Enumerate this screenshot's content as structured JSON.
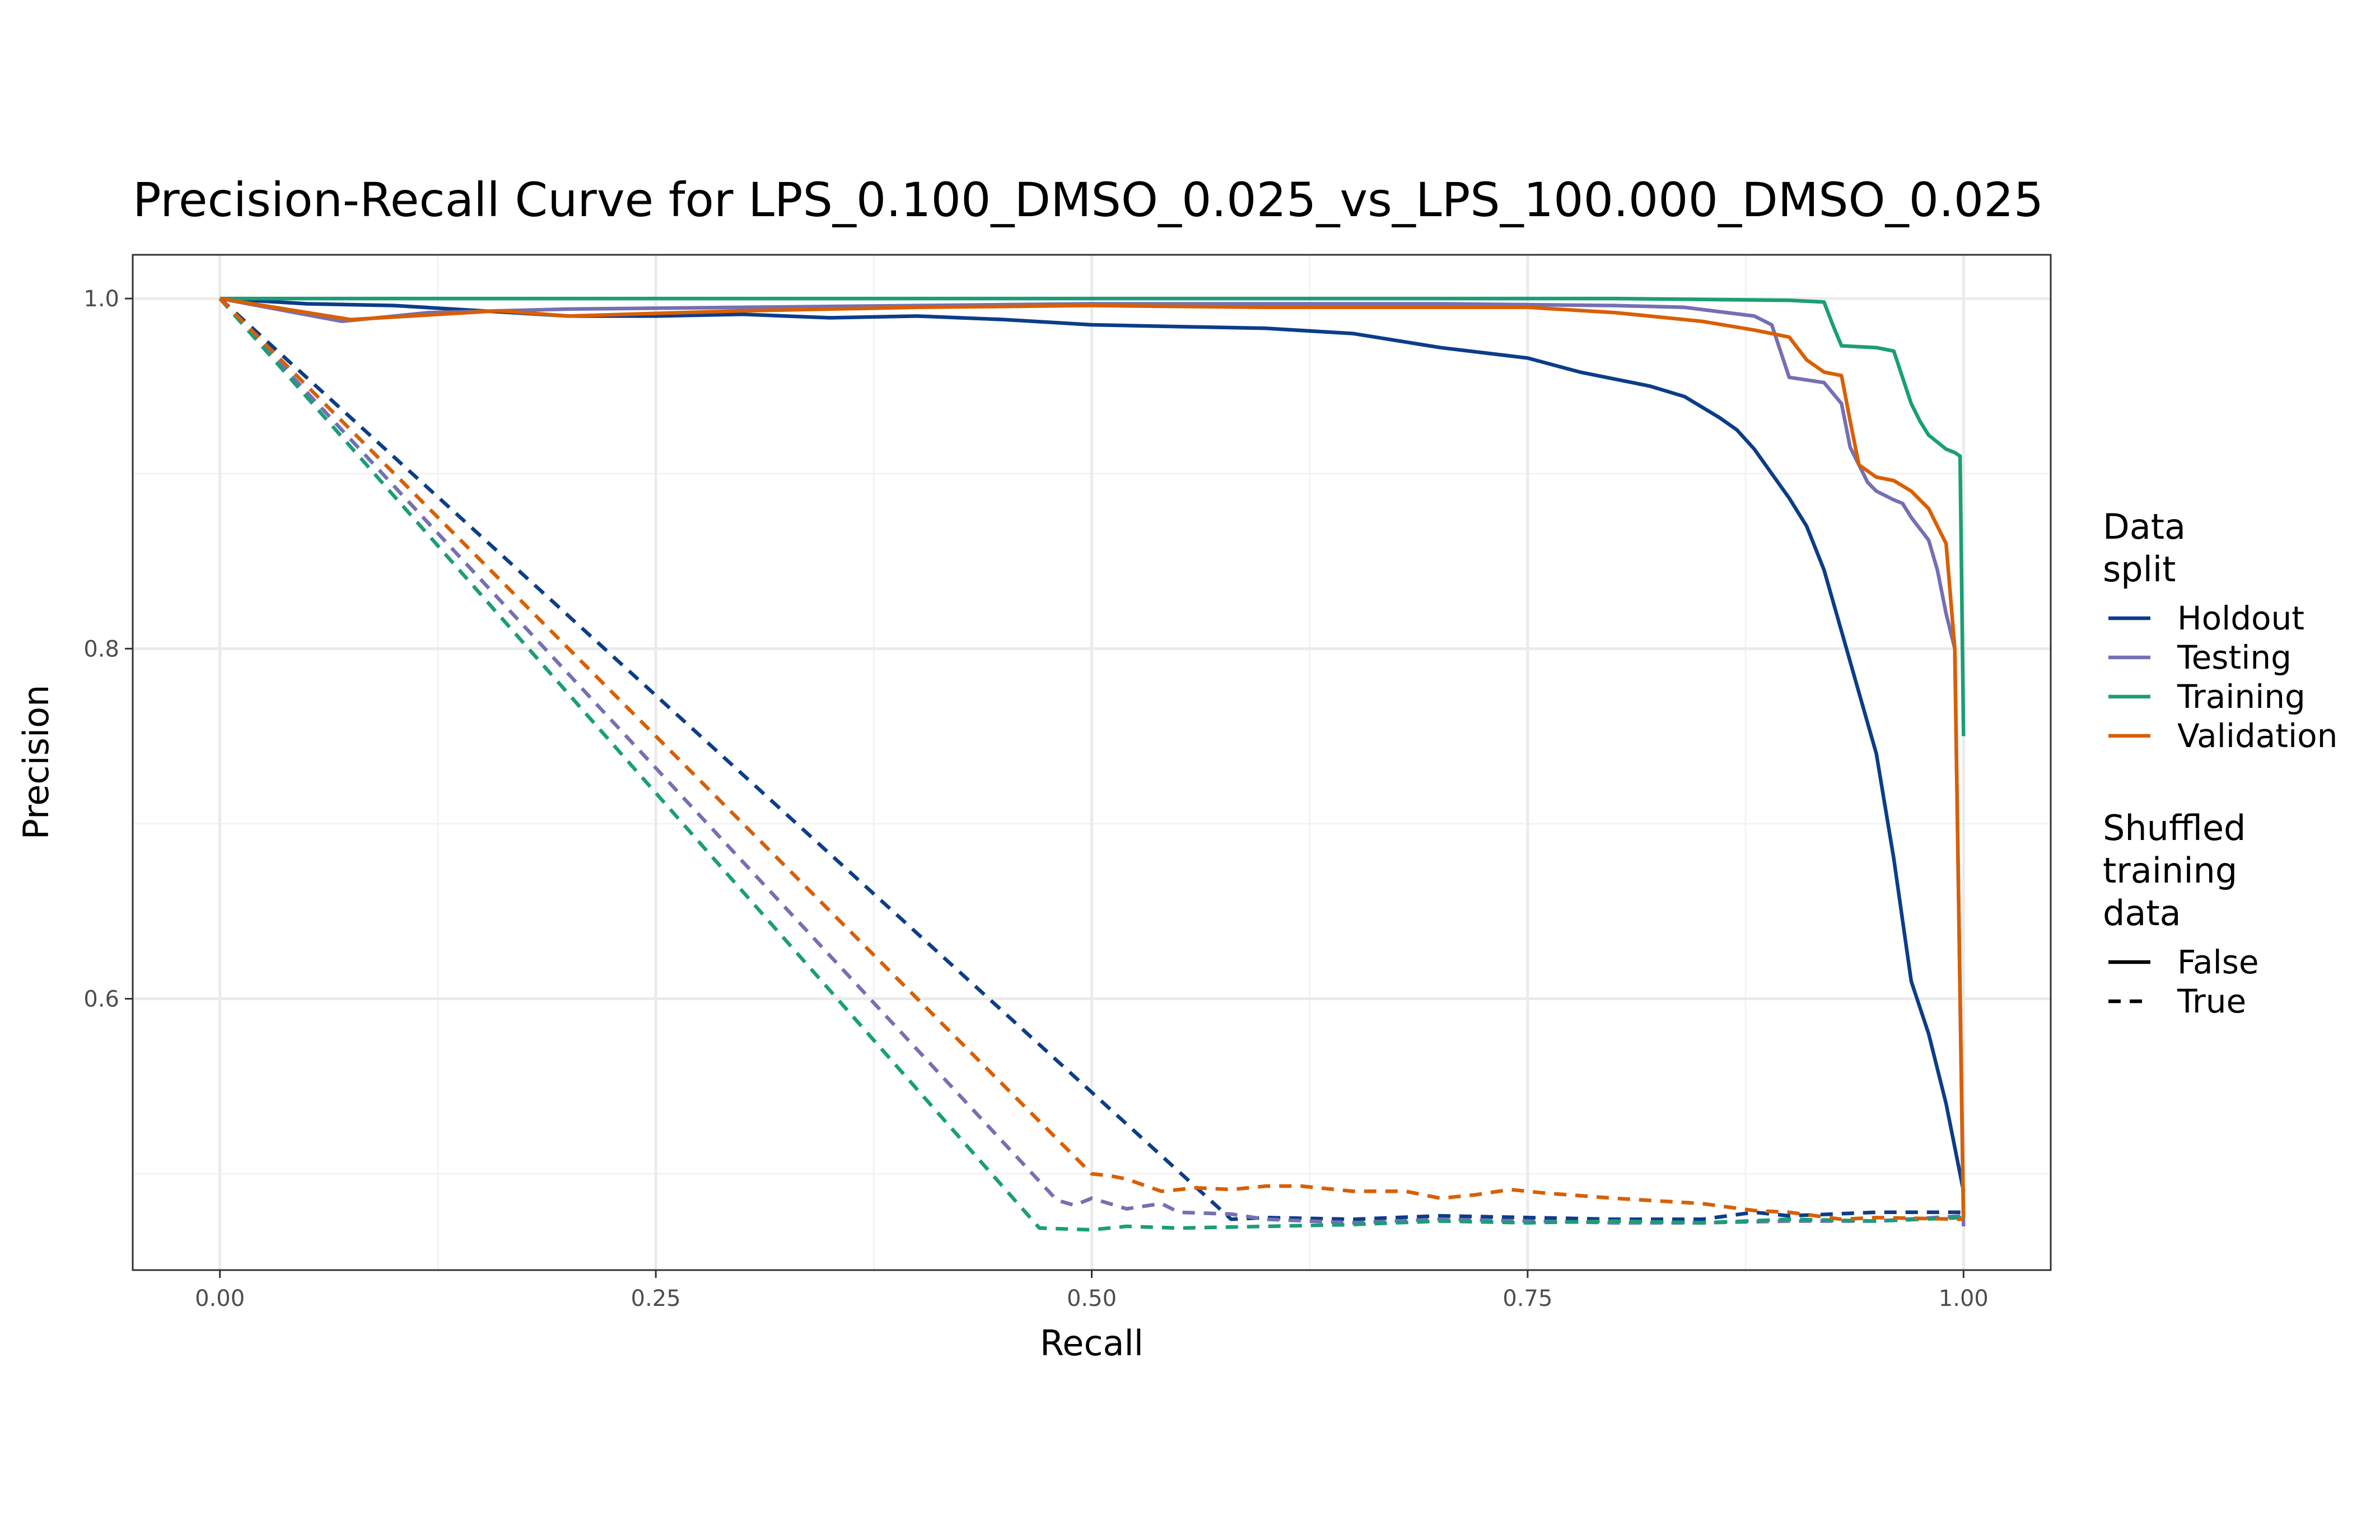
{
  "chart_data": {
    "type": "line",
    "title": "Precision-Recall Curve for LPS_0.100_DMSO_0.025_vs_LPS_100.000_DMSO_0.025",
    "xlabel": "Recall",
    "ylabel": "Precision",
    "xlim": [
      -0.05,
      1.05
    ],
    "ylim": [
      0.445,
      1.025
    ],
    "x_ticks": [
      0.0,
      0.25,
      0.5,
      0.75,
      1.0
    ],
    "x_tick_labels": [
      "0.00",
      "0.25",
      "0.50",
      "0.75",
      "1.00"
    ],
    "y_ticks": [
      0.6,
      0.8,
      1.0
    ],
    "y_tick_labels": [
      "0.6",
      "0.8",
      "1.0"
    ],
    "y_minor_ticks": [
      0.5,
      0.7,
      0.9
    ],
    "x_minor_ticks": [
      0.125,
      0.375,
      0.625,
      0.875
    ],
    "grid": true,
    "legend_position": "right",
    "legend": {
      "color_title": "Data\nsplit",
      "color_entries": [
        {
          "label": "Holdout",
          "color": "#0b3d89"
        },
        {
          "label": "Testing",
          "color": "#7570b3"
        },
        {
          "label": "Training",
          "color": "#1b9e77"
        },
        {
          "label": "Validation",
          "color": "#d95f02"
        }
      ],
      "linetype_title": "Shuffled\ntraining\ndata",
      "linetype_entries": [
        {
          "label": "False",
          "dash": "solid"
        },
        {
          "label": "True",
          "dash": "dashed"
        }
      ]
    },
    "series": [
      {
        "split": "Holdout",
        "shuffled": "False",
        "color": "#0b3d89",
        "x": [
          0.0,
          0.05,
          0.1,
          0.15,
          0.2,
          0.25,
          0.3,
          0.35,
          0.4,
          0.45,
          0.5,
          0.55,
          0.6,
          0.65,
          0.7,
          0.75,
          0.78,
          0.8,
          0.82,
          0.84,
          0.86,
          0.87,
          0.88,
          0.89,
          0.9,
          0.91,
          0.92,
          0.93,
          0.94,
          0.95,
          0.955,
          0.96,
          0.97,
          0.98,
          0.99,
          1.0
        ],
        "y": [
          1.0,
          0.997,
          0.996,
          0.993,
          0.99,
          0.99,
          0.991,
          0.989,
          0.99,
          0.988,
          0.985,
          0.984,
          0.983,
          0.98,
          0.972,
          0.966,
          0.958,
          0.954,
          0.95,
          0.944,
          0.932,
          0.925,
          0.914,
          0.9,
          0.886,
          0.87,
          0.845,
          0.81,
          0.775,
          0.74,
          0.71,
          0.68,
          0.61,
          0.58,
          0.54,
          0.49
        ]
      },
      {
        "split": "Testing",
        "shuffled": "False",
        "color": "#7570b3",
        "x": [
          0.0,
          0.07,
          0.12,
          0.2,
          0.3,
          0.4,
          0.5,
          0.6,
          0.7,
          0.8,
          0.84,
          0.88,
          0.89,
          0.895,
          0.9,
          0.92,
          0.93,
          0.935,
          0.94,
          0.945,
          0.95,
          0.96,
          0.965,
          0.97,
          0.98,
          0.985,
          0.99,
          0.995,
          1.0
        ],
        "y": [
          1.0,
          0.987,
          0.992,
          0.994,
          0.995,
          0.996,
          0.997,
          0.997,
          0.997,
          0.996,
          0.995,
          0.99,
          0.985,
          0.97,
          0.955,
          0.952,
          0.94,
          0.915,
          0.905,
          0.895,
          0.89,
          0.885,
          0.883,
          0.875,
          0.862,
          0.845,
          0.82,
          0.8,
          0.47
        ]
      },
      {
        "split": "Training",
        "shuffled": "False",
        "color": "#1b9e77",
        "x": [
          0.0,
          0.2,
          0.4,
          0.6,
          0.8,
          0.9,
          0.92,
          0.925,
          0.93,
          0.95,
          0.96,
          0.965,
          0.97,
          0.975,
          0.98,
          0.99,
          0.995,
          0.998,
          1.0
        ],
        "y": [
          1.0,
          1.0,
          1.0,
          1.0,
          1.0,
          0.999,
          0.998,
          0.985,
          0.973,
          0.972,
          0.97,
          0.955,
          0.94,
          0.93,
          0.922,
          0.914,
          0.912,
          0.91,
          0.75
        ]
      },
      {
        "split": "Validation",
        "shuffled": "False",
        "color": "#d95f02",
        "x": [
          0.0,
          0.075,
          0.16,
          0.2,
          0.3,
          0.4,
          0.5,
          0.6,
          0.7,
          0.75,
          0.8,
          0.85,
          0.88,
          0.9,
          0.91,
          0.92,
          0.93,
          0.935,
          0.94,
          0.95,
          0.96,
          0.97,
          0.98,
          0.99,
          0.995,
          1.0
        ],
        "y": [
          1.0,
          0.988,
          0.993,
          0.99,
          0.993,
          0.995,
          0.996,
          0.995,
          0.995,
          0.995,
          0.992,
          0.987,
          0.982,
          0.978,
          0.965,
          0.958,
          0.956,
          0.93,
          0.905,
          0.898,
          0.896,
          0.89,
          0.88,
          0.86,
          0.8,
          0.475
        ]
      },
      {
        "split": "Holdout",
        "shuffled": "True",
        "color": "#0b3d89",
        "x": [
          0.0,
          0.58,
          0.6,
          0.65,
          0.7,
          0.75,
          0.8,
          0.85,
          0.88,
          0.9,
          0.95,
          1.0
        ],
        "y": [
          1.0,
          0.474,
          0.475,
          0.474,
          0.476,
          0.475,
          0.474,
          0.474,
          0.478,
          0.476,
          0.478,
          0.478
        ]
      },
      {
        "split": "Testing",
        "shuffled": "True",
        "color": "#7570b3",
        "x": [
          0.0,
          0.48,
          0.49,
          0.5,
          0.52,
          0.54,
          0.55,
          0.58,
          0.6,
          0.65,
          0.7,
          0.75,
          0.8,
          0.85,
          0.9,
          0.95,
          1.0
        ],
        "y": [
          1.0,
          0.485,
          0.482,
          0.486,
          0.48,
          0.483,
          0.478,
          0.477,
          0.474,
          0.472,
          0.474,
          0.473,
          0.472,
          0.472,
          0.473,
          0.473,
          0.476
        ]
      },
      {
        "split": "Training",
        "shuffled": "True",
        "color": "#1b9e77",
        "x": [
          0.0,
          0.47,
          0.5,
          0.52,
          0.55,
          0.6,
          0.65,
          0.7,
          0.75,
          0.8,
          0.85,
          0.9,
          0.95,
          1.0
        ],
        "y": [
          1.0,
          0.469,
          0.468,
          0.47,
          0.469,
          0.47,
          0.471,
          0.473,
          0.472,
          0.473,
          0.472,
          0.474,
          0.473,
          0.475
        ]
      },
      {
        "split": "Validation",
        "shuffled": "True",
        "color": "#d95f02",
        "x": [
          0.0,
          0.5,
          0.51,
          0.52,
          0.54,
          0.56,
          0.58,
          0.6,
          0.62,
          0.65,
          0.68,
          0.7,
          0.72,
          0.74,
          0.76,
          0.8,
          0.85,
          0.88,
          0.9,
          0.93,
          0.95,
          1.0
        ],
        "y": [
          1.0,
          0.5,
          0.499,
          0.497,
          0.49,
          0.492,
          0.491,
          0.493,
          0.493,
          0.49,
          0.49,
          0.486,
          0.488,
          0.491,
          0.489,
          0.486,
          0.483,
          0.479,
          0.478,
          0.474,
          0.475,
          0.474
        ]
      }
    ]
  }
}
